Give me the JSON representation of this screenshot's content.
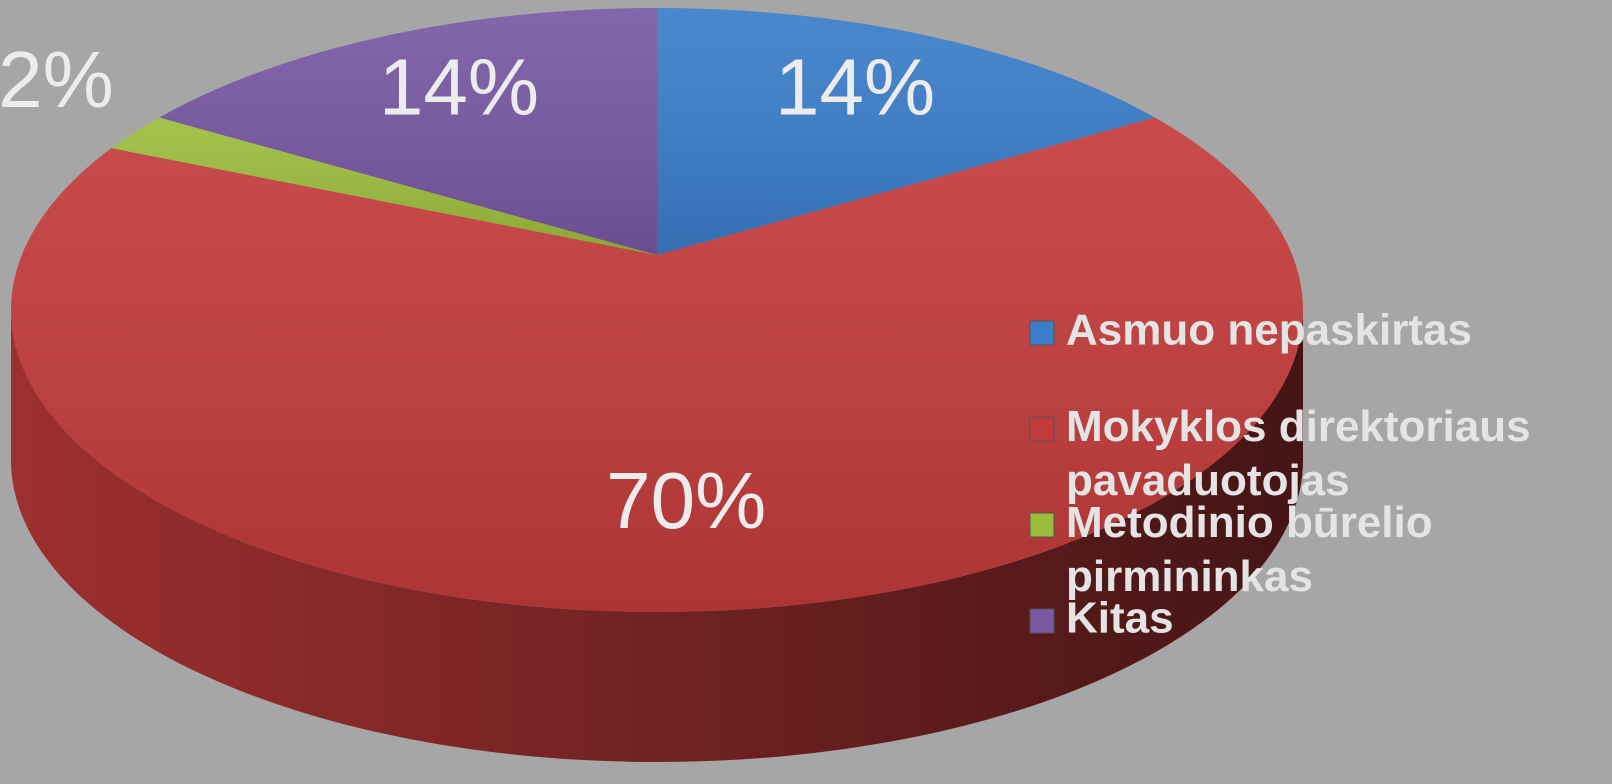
{
  "chart_data": {
    "type": "pie",
    "categories": [
      "Asmuo nepaskirtas",
      "Mokyklos direktoriaus pavaduotojas",
      "Metodinio būrelio pirmininkas",
      "Kitas"
    ],
    "values": [
      14,
      70,
      2,
      14
    ],
    "value_labels": [
      "14%",
      "70%",
      "2%",
      "14%"
    ],
    "colors": [
      "#3a7dc9",
      "#c43b3b",
      "#9cbd3c",
      "#7858a3"
    ],
    "legend": "right"
  }
}
